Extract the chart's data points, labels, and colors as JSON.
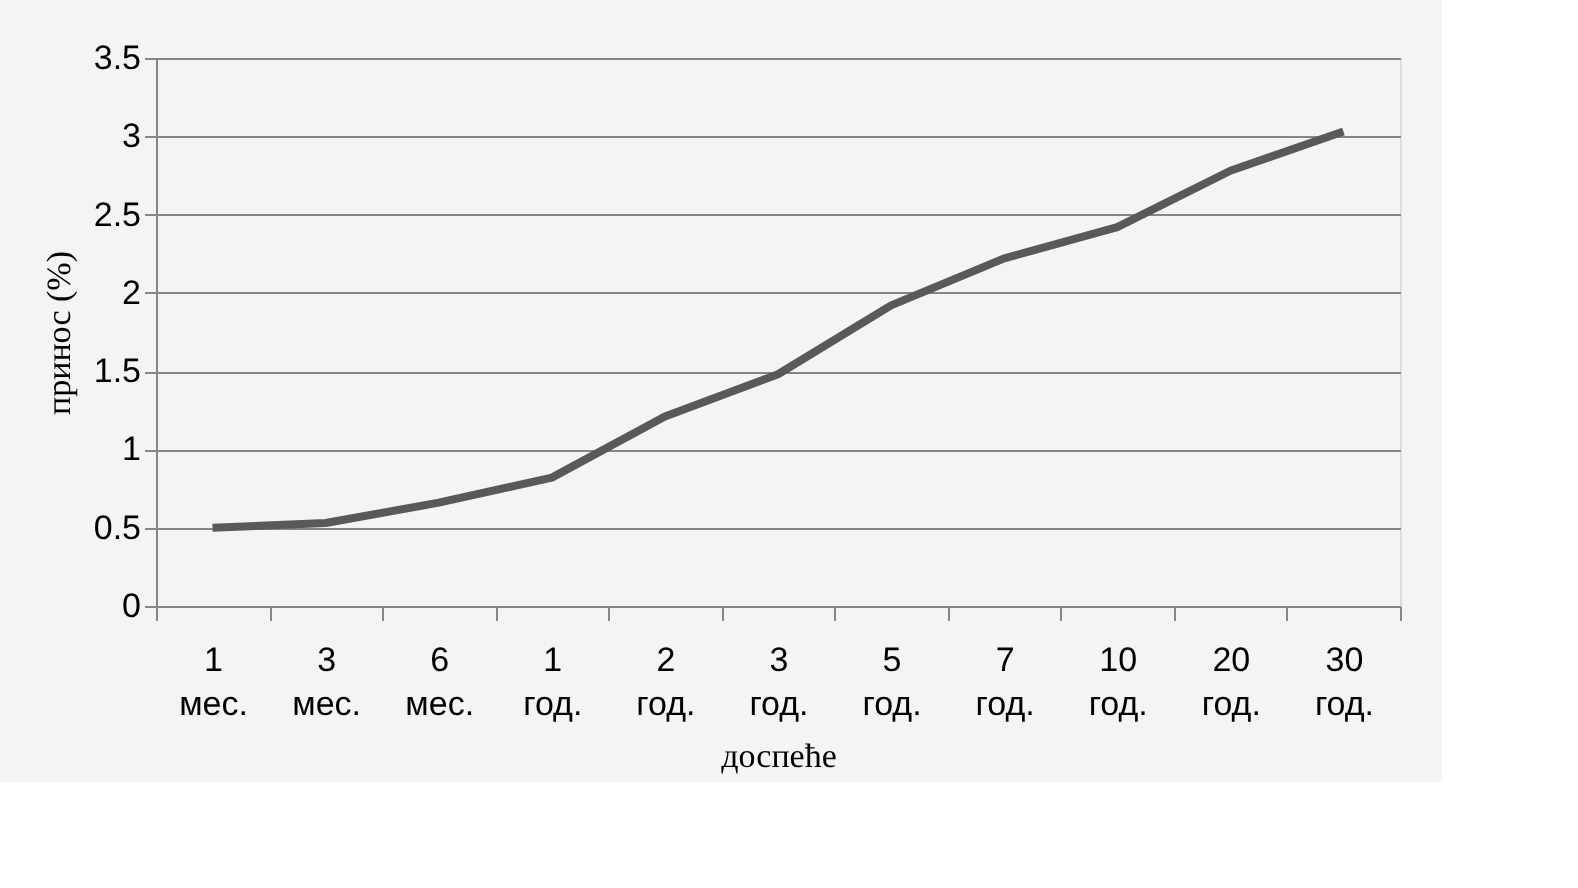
{
  "chart_data": {
    "type": "line",
    "xlabel": "доспеће",
    "ylabel": "принос  (%)",
    "categories": [
      "1 мес.",
      "3 мес.",
      "6 мес.",
      "1 год.",
      "2 год.",
      "3 год.",
      "5 год.",
      "7 год.",
      "10 год.",
      "20 год.",
      "30 год."
    ],
    "series": [
      {
        "color": "#595959",
        "values": [
          0.5,
          0.53,
          0.66,
          0.82,
          1.21,
          1.48,
          1.92,
          2.22,
          2.42,
          2.78,
          3.03
        ]
      }
    ],
    "ylim": [
      0,
      3.5
    ],
    "yticks": [
      0,
      0.5,
      1,
      1.5,
      2,
      2.5,
      3,
      3.5
    ],
    "grid": "y",
    "marker": "none",
    "line_style": "solid"
  }
}
